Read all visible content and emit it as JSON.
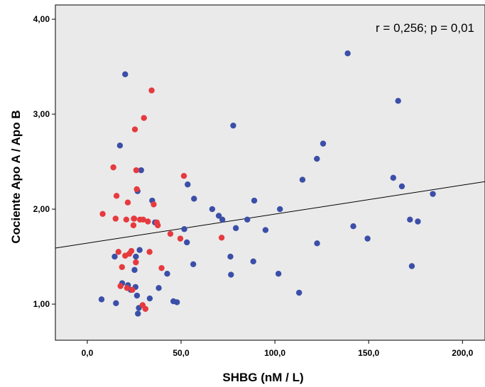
{
  "chart_data": {
    "type": "scatter",
    "xlabel": "SHBG  (nM / L)",
    "ylabel": "Cociente Apo A / Apo B",
    "xlim": [
      -17,
      212
    ],
    "ylim": [
      0.62,
      4.15
    ],
    "x_ticks": [
      {
        "value": 0,
        "label": "0,0"
      },
      {
        "value": 50,
        "label": "50,0"
      },
      {
        "value": 100,
        "label": "100,0"
      },
      {
        "value": 150,
        "label": "150,0"
      },
      {
        "value": 200,
        "label": "200,0"
      }
    ],
    "y_ticks": [
      {
        "value": 1,
        "label": "1,00"
      },
      {
        "value": 2,
        "label": "2,00"
      },
      {
        "value": 3,
        "label": "3,00"
      },
      {
        "value": 4,
        "label": "4,00"
      }
    ],
    "annotation": "r = 0,256;  p = 0,01",
    "grid": false,
    "plot_background": "#eaeaea",
    "regression_line": {
      "x": [
        -17,
        212
      ],
      "y": [
        1.59,
        2.29
      ],
      "color": "#000000"
    },
    "series": [
      {
        "color": "#3b4fa8",
        "points": [
          [
            7.6,
            1.05
          ],
          [
            14.6,
            1.5
          ],
          [
            15.3,
            1.01
          ],
          [
            17.4,
            2.67
          ],
          [
            18.6,
            1.22
          ],
          [
            20.2,
            3.42
          ],
          [
            21.7,
            1.2
          ],
          [
            23.2,
            1.15
          ],
          [
            25.2,
            1.36
          ],
          [
            25.7,
            1.18
          ],
          [
            25.9,
            1.5
          ],
          [
            26.5,
            1.09
          ],
          [
            26.8,
            2.19
          ],
          [
            27.0,
            0.9
          ],
          [
            27.5,
            0.96
          ],
          [
            27.9,
            1.57
          ],
          [
            28.7,
            2.41
          ],
          [
            33.3,
            1.06
          ],
          [
            34.6,
            2.09
          ],
          [
            36.1,
            1.86
          ],
          [
            38.1,
            1.17
          ],
          [
            42.6,
            1.32
          ],
          [
            45.9,
            1.03
          ],
          [
            47.8,
            1.02
          ],
          [
            51.7,
            1.79
          ],
          [
            53.1,
            1.65
          ],
          [
            53.5,
            2.26
          ],
          [
            56.5,
            1.42
          ],
          [
            56.9,
            2.11
          ],
          [
            66.6,
            2.0
          ],
          [
            70.1,
            1.93
          ],
          [
            72.0,
            1.89
          ],
          [
            76.3,
            1.5
          ],
          [
            76.6,
            1.31
          ],
          [
            77.8,
            2.88
          ],
          [
            79.2,
            1.8
          ],
          [
            85.3,
            1.89
          ],
          [
            88.5,
            1.45
          ],
          [
            89.0,
            2.09
          ],
          [
            95.0,
            1.78
          ],
          [
            101.9,
            1.32
          ],
          [
            102.7,
            2.0
          ],
          [
            112.9,
            1.12
          ],
          [
            114.7,
            2.31
          ],
          [
            122.4,
            2.53
          ],
          [
            122.5,
            1.64
          ],
          [
            125.7,
            2.69
          ],
          [
            138.8,
            3.64
          ],
          [
            141.8,
            1.82
          ],
          [
            149.4,
            1.69
          ],
          [
            163.1,
            2.33
          ],
          [
            165.7,
            3.14
          ],
          [
            167.7,
            2.24
          ],
          [
            172.0,
            1.89
          ],
          [
            173.0,
            1.4
          ],
          [
            176.2,
            1.87
          ],
          [
            184.2,
            2.16
          ]
        ]
      },
      {
        "color": "#e63a3f",
        "points": [
          [
            8.2,
            1.95
          ],
          [
            13.9,
            2.44
          ],
          [
            15.1,
            1.9
          ],
          [
            15.6,
            2.14
          ],
          [
            16.6,
            1.55
          ],
          [
            17.7,
            1.19
          ],
          [
            18.5,
            1.39
          ],
          [
            20.2,
            1.51
          ],
          [
            20.8,
            1.89
          ],
          [
            21.2,
            1.17
          ],
          [
            21.6,
            2.07
          ],
          [
            22.4,
            1.53
          ],
          [
            23.5,
            1.56
          ],
          [
            24.0,
            1.15
          ],
          [
            24.6,
            1.83
          ],
          [
            24.8,
            1.9
          ],
          [
            25.0,
            1.9
          ],
          [
            25.4,
            2.84
          ],
          [
            25.9,
            1.44
          ],
          [
            26.1,
            2.41
          ],
          [
            26.4,
            2.21
          ],
          [
            28.1,
            1.89
          ],
          [
            29.8,
            1.89
          ],
          [
            29.5,
            0.99
          ],
          [
            30.2,
            2.96
          ],
          [
            31.0,
            0.95
          ],
          [
            32.3,
            1.87
          ],
          [
            33.2,
            1.55
          ],
          [
            34.3,
            3.25
          ],
          [
            35.4,
            2.05
          ],
          [
            37.1,
            1.86
          ],
          [
            37.6,
            1.83
          ],
          [
            39.6,
            1.38
          ],
          [
            44.3,
            1.74
          ],
          [
            49.6,
            1.69
          ],
          [
            51.5,
            2.35
          ],
          [
            71.6,
            1.7
          ]
        ]
      }
    ]
  }
}
